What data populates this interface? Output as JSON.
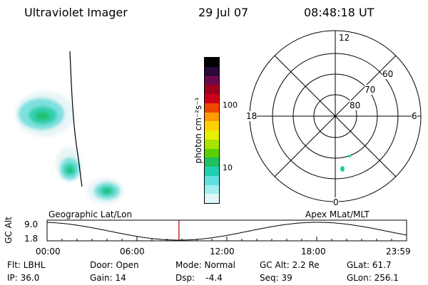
{
  "header": {
    "title": "Ultraviolet Imager",
    "date": "29 Jul 07",
    "time": "08:48:18 UT"
  },
  "colorbar": {
    "label": "photon cm⁻²s⁻¹",
    "ticks": [
      "100",
      "10"
    ],
    "colors": [
      "#000000",
      "#2a0a3a",
      "#6a0a4a",
      "#a00020",
      "#d0001a",
      "#f04800",
      "#ff9a00",
      "#ffd000",
      "#e6f000",
      "#a8e400",
      "#5ad000",
      "#20c060",
      "#20d0b0",
      "#60e0e0",
      "#a0eef0",
      "#e0f8f8"
    ]
  },
  "polar": {
    "mlt_labels": {
      "top": "12",
      "left": "18",
      "right": "6",
      "bottom": "0"
    },
    "lat_labels": [
      "60",
      "70",
      "80"
    ]
  },
  "timeline": {
    "left_label": "Geographic Lat/Lon",
    "right_label": "Apex MLat/MLT",
    "axis_title": "GC Alt",
    "y_ticks": [
      "9.0",
      "1.8"
    ],
    "x_ticks": [
      "00:00",
      "06:00",
      "12:00",
      "18:00",
      "23:59"
    ],
    "marker_time_hours": 8.805
  },
  "info": {
    "row1": {
      "filter": "Flt: LBHL",
      "door": "Door: Open",
      "mode": "Mode: Normal",
      "gcalt": "GC Alt: 2.2 Re",
      "glat": "GLat: 61.7"
    },
    "row2": {
      "ip": "IP: 36.0",
      "gain": "Gain: 14",
      "dsp": "Dsp:    -4.4",
      "seq": "Seq: 39",
      "glon": "GLon: 256.1"
    }
  }
}
